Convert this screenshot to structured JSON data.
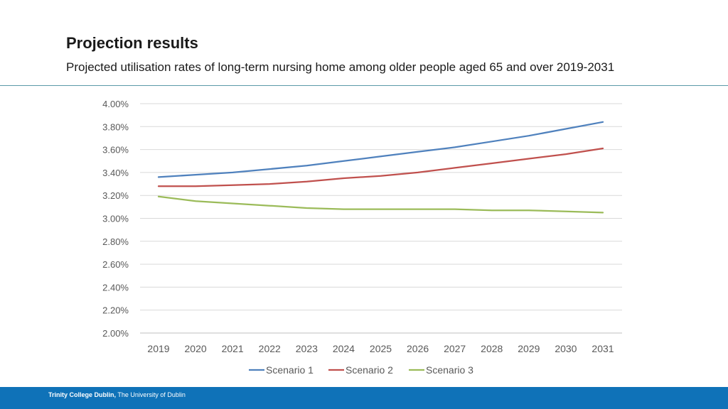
{
  "header": {
    "title": "Projection results",
    "subtitle": "Projected utilisation rates of long-term nursing home among older people aged 65 and over 2019-2031"
  },
  "footer": {
    "institution": "Trinity College Dublin,",
    "affiliation": "The University of Dublin"
  },
  "chart_data": {
    "type": "line",
    "title": "",
    "xlabel": "",
    "ylabel": "",
    "categories": [
      "2019",
      "2020",
      "2021",
      "2022",
      "2023",
      "2024",
      "2025",
      "2026",
      "2027",
      "2028",
      "2029",
      "2030",
      "2031"
    ],
    "ylim": [
      2.0,
      4.0
    ],
    "yticks": [
      2.0,
      2.2,
      2.4,
      2.6,
      2.8,
      3.0,
      3.2,
      3.4,
      3.6,
      3.8,
      4.0
    ],
    "ytick_labels": [
      "2.00%",
      "2.20%",
      "2.40%",
      "2.60%",
      "2.80%",
      "3.00%",
      "3.20%",
      "3.40%",
      "3.60%",
      "3.80%",
      "4.00%"
    ],
    "grid": true,
    "legend_position": "bottom",
    "series": [
      {
        "name": "Scenario 1",
        "color": "#4f81bd",
        "values": [
          3.36,
          3.38,
          3.4,
          3.43,
          3.46,
          3.5,
          3.54,
          3.58,
          3.62,
          3.67,
          3.72,
          3.78,
          3.84
        ]
      },
      {
        "name": "Scenario 2",
        "color": "#c0504d",
        "values": [
          3.28,
          3.28,
          3.29,
          3.3,
          3.32,
          3.35,
          3.37,
          3.4,
          3.44,
          3.48,
          3.52,
          3.56,
          3.61
        ]
      },
      {
        "name": "Scenario 3",
        "color": "#9bbb59",
        "values": [
          3.19,
          3.15,
          3.13,
          3.11,
          3.09,
          3.08,
          3.08,
          3.08,
          3.08,
          3.07,
          3.07,
          3.06,
          3.05
        ]
      }
    ]
  }
}
